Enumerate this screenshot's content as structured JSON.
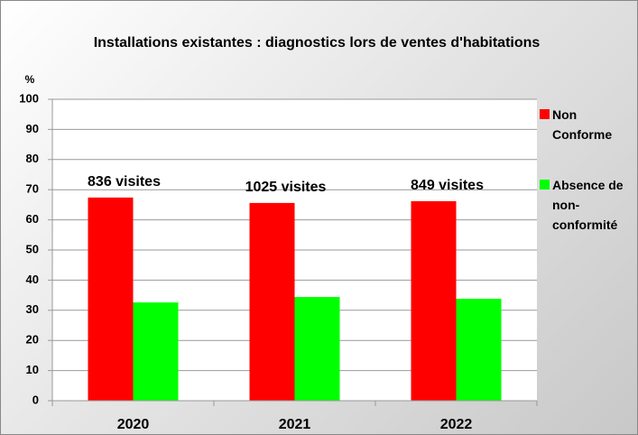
{
  "chart_data": {
    "type": "bar",
    "title": "Installations existantes : diagnostics lors de ventes d'habitations",
    "y_label": "%",
    "categories": [
      "2020",
      "2021",
      "2022"
    ],
    "series": [
      {
        "name": "Non Conforme",
        "color": "#ff0000",
        "values": [
          67.4,
          65.6,
          66.2
        ]
      },
      {
        "name": "Absence de non-conformité",
        "color": "#00ff00",
        "values": [
          32.6,
          34.4,
          33.8
        ]
      }
    ],
    "annotations": [
      "836 visites",
      "1025 visites",
      "849 visites"
    ],
    "ylim": [
      0,
      100
    ],
    "yticks": [
      0,
      10,
      20,
      30,
      40,
      50,
      60,
      70,
      80,
      90,
      100
    ],
    "grid": true,
    "legend": "right"
  }
}
